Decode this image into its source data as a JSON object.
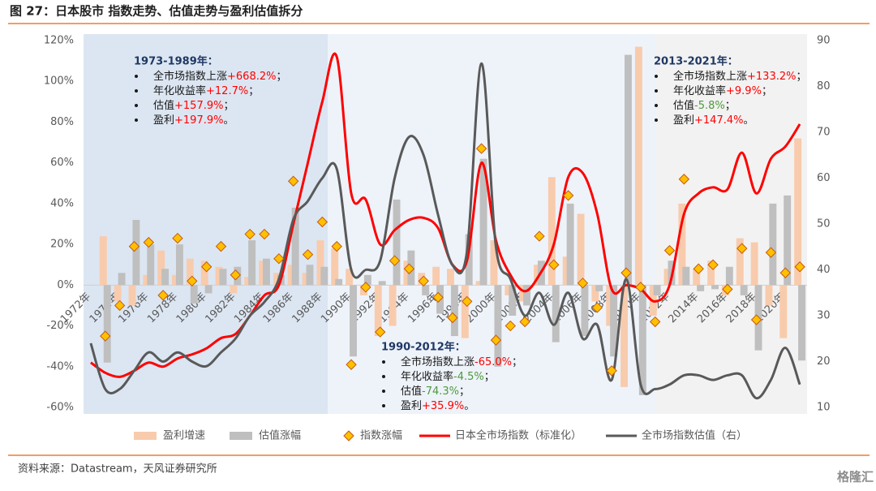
{
  "title": "图 27：日本股市 指数走势、估值走势与盈利估值拆分",
  "source": "资料来源：Datastream，天风证券研究所",
  "watermark": "格隆汇",
  "chart_data": {
    "type": "combo",
    "categories": [
      "1972年",
      null,
      "1974年",
      null,
      "1976年",
      null,
      "1978年",
      null,
      "1980年",
      null,
      "1982年",
      null,
      "1984年",
      null,
      "1986年",
      null,
      "1988年",
      null,
      "1990年",
      null,
      "1992年",
      null,
      "1994年",
      null,
      "1996年",
      null,
      "1998年",
      null,
      "2000年",
      null,
      "2002年",
      null,
      "2004年",
      null,
      "2006年",
      null,
      "2008年",
      null,
      "2010年",
      null,
      "2012年",
      null,
      "2014年",
      null,
      "2016年",
      null,
      "2018年",
      null,
      "2020年",
      null
    ],
    "ylim": [
      -60,
      120
    ],
    "yticks": [
      {
        "value": -60,
        "label": "-60%"
      },
      {
        "value": -40,
        "label": "-40%"
      },
      {
        "value": -20,
        "label": "-20%"
      },
      {
        "value": 0,
        "label": "0%"
      },
      {
        "value": 20,
        "label": "20%"
      },
      {
        "value": 40,
        "label": "40%"
      },
      {
        "value": 60,
        "label": "60%"
      },
      {
        "value": 80,
        "label": "80%"
      },
      {
        "value": 100,
        "label": "100%"
      },
      {
        "value": 120,
        "label": "120%"
      }
    ],
    "y2lim": [
      10,
      90
    ],
    "y2ticks": [
      10,
      20,
      30,
      40,
      50,
      60,
      70,
      80,
      90
    ],
    "series": [
      {
        "name": "盈利增速",
        "kind": "bar",
        "color": "#f8cbad",
        "values": [
          null,
          24,
          -8,
          -10,
          5,
          17,
          5,
          13,
          12,
          9,
          -4,
          4,
          12,
          6,
          10,
          6,
          22,
          18,
          8,
          -5,
          -25,
          -20,
          12,
          6,
          9,
          8,
          -26,
          2,
          22,
          -5,
          -8,
          10,
          53,
          14,
          35,
          -8,
          -20,
          -50,
          117,
          -15,
          8,
          40,
          8,
          12,
          -5,
          23,
          21,
          -10,
          -26,
          72
        ]
      },
      {
        "name": "估值涨幅",
        "kind": "bar",
        "color": "#bfbfbf",
        "values": [
          null,
          -38,
          6,
          32,
          20,
          8,
          20,
          -9,
          -4,
          8,
          9,
          22,
          13,
          5,
          38,
          10,
          9,
          3,
          -35,
          5,
          2,
          42,
          17,
          -5,
          -14,
          -25,
          25,
          62,
          -40,
          -15,
          -10,
          12,
          -28,
          40,
          -25,
          -3,
          -35,
          113,
          -54,
          -5,
          12,
          9,
          -3,
          -2,
          9,
          -5,
          -32,
          40,
          44,
          -37
        ]
      },
      {
        "name": "指数涨幅",
        "kind": "marker",
        "color": "#ffc000",
        "values": [
          null,
          -25,
          -10,
          19,
          21,
          -5,
          23,
          2,
          9,
          19,
          5,
          25,
          25,
          13,
          51,
          15,
          31,
          19,
          -39,
          -1,
          -23,
          12,
          8,
          2,
          -6,
          -16,
          -8,
          67,
          -27,
          -20,
          -18,
          24,
          10,
          44,
          1,
          -11,
          -42,
          6,
          -1,
          -18,
          17,
          52,
          8,
          10,
          -2,
          18,
          -17,
          16,
          6,
          9
        ]
      },
      {
        "name": "日本全市场指数（标准化）",
        "kind": "line",
        "color": "#ff0000",
        "values": [
          -38,
          -43,
          -45,
          -42,
          -38,
          -40,
          -36,
          -34,
          -31,
          -26,
          -24,
          -15,
          -5,
          0,
          30,
          60,
          90,
          112,
          45,
          42,
          20,
          27,
          32,
          33,
          28,
          10,
          12,
          60,
          22,
          5,
          -3,
          5,
          20,
          53,
          55,
          35,
          -2,
          0,
          -2,
          -8,
          0,
          35,
          45,
          48,
          47,
          65,
          45,
          62,
          68,
          79
        ]
      },
      {
        "name": "全市场指数估值（右）",
        "kind": "line",
        "axis": "y2",
        "color": "#595959",
        "values": [
          24,
          14,
          14,
          18,
          22,
          20,
          22,
          20,
          19,
          22,
          25,
          30,
          33,
          38,
          51,
          55,
          60,
          62,
          40,
          40,
          42,
          60,
          69,
          65,
          52,
          41,
          44,
          85,
          45,
          38,
          30,
          35,
          28,
          35,
          25,
          28,
          16,
          38,
          15,
          14,
          15,
          17,
          17,
          16,
          17,
          17,
          12,
          16,
          23,
          15
        ]
      }
    ],
    "annotations": [
      {
        "title": "1973-1989年：",
        "items": [
          {
            "text": "全市场指数上涨",
            "value": "+668.2%",
            "end": "；",
            "color": "#ff0000"
          },
          {
            "text": "年化收益率",
            "value": "+12.7%",
            "end": "；",
            "color": "#ff0000"
          },
          {
            "text": "估值",
            "value": "+157.9%",
            "end": "；",
            "color": "#ff0000"
          },
          {
            "text": "盈利",
            "value": "+197.9%",
            "end": "。",
            "color": "#ff0000"
          }
        ]
      },
      {
        "title": "1990-2012年：",
        "items": [
          {
            "text": "全市场指数上涨",
            "value": "-65.0%",
            "end": "；",
            "color": "#ff0000"
          },
          {
            "text": "年化收益率",
            "value": "-4.5%",
            "end": "；",
            "color": "#4e9a3a"
          },
          {
            "text": "估值",
            "value": "-74.3%",
            "end": "；",
            "color": "#4e9a3a"
          },
          {
            "text": "盈利",
            "value": "+35.9%",
            "end": "。",
            "color": "#ff0000"
          }
        ]
      },
      {
        "title": "2013-2021年：",
        "items": [
          {
            "text": "全市场指数上涨",
            "value": "+133.2%",
            "end": "；",
            "color": "#ff0000"
          },
          {
            "text": "年化收益率",
            "value": "+9.9%",
            "end": "；",
            "color": "#ff0000"
          },
          {
            "text": "估值",
            "value": "-5.8%",
            "end": "；",
            "color": "#4e9a3a"
          },
          {
            "text": "盈利",
            "value": "+147.4%",
            "end": "。",
            "color": "#ff0000"
          }
        ]
      }
    ]
  }
}
